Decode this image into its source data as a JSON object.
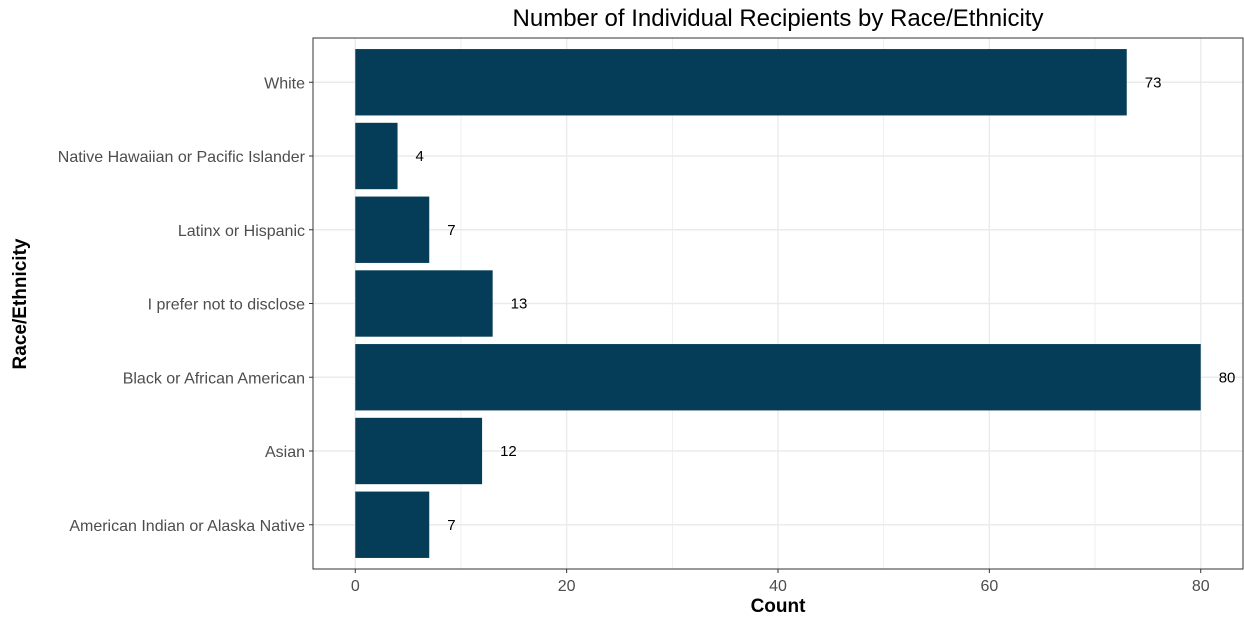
{
  "chart_data": {
    "type": "bar",
    "orientation": "horizontal",
    "title": "Number of Individual Recipients by Race/Ethnicity",
    "xlabel": "Count",
    "ylabel": "Race/Ethnicity",
    "categories": [
      "American Indian or Alaska Native",
      "Asian",
      "Black or African American",
      "I prefer not to disclose",
      "Latinx or Hispanic",
      "Native Hawaiian or Pacific Islander",
      "White"
    ],
    "values": [
      7,
      12,
      80,
      13,
      7,
      4,
      73
    ],
    "xlim": [
      -4,
      84
    ],
    "xticks": [
      0,
      20,
      40,
      60,
      80
    ],
    "grid": true,
    "legend": "none",
    "bar_color": "#053C58",
    "grid_color": "#ebebeb",
    "panel_border_color": "#333333"
  }
}
